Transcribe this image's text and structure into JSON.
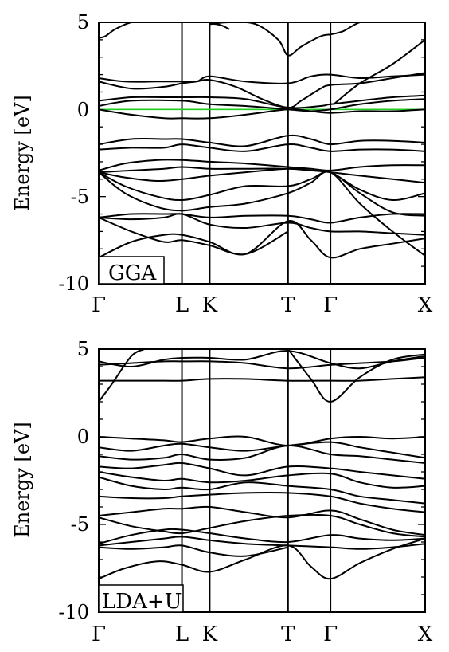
{
  "chart_data": [
    {
      "type": "line",
      "label": "GGA",
      "ylabel": "Energy [eV]",
      "ylim": [
        -10,
        5
      ],
      "yticks": [
        -10,
        -5,
        0,
        5
      ],
      "kpoints": [
        "Γ",
        "L",
        "K",
        "T",
        "Γ",
        "X"
      ],
      "kpoint_positions": [
        0,
        0.255,
        0.34,
        0.58,
        0.71,
        1.0
      ],
      "fermi_level": 0,
      "fermi_color": "#22cc22",
      "line_color": "#000000",
      "bands": [
        {
          "x": [
            0,
            0.02,
            0.05,
            0.1,
            0.14
          ],
          "y": [
            4.1,
            4.2,
            4.6,
            5.0,
            5.0
          ]
        },
        {
          "x": [
            0.34,
            0.4,
            0.48,
            0.55,
            0.58,
            0.62,
            0.68,
            0.71
          ],
          "y": [
            4.9,
            5.0,
            4.9,
            4.0,
            3.1,
            3.6,
            4.2,
            4.3
          ]
        },
        {
          "x": [
            0.71,
            0.75,
            0.8,
            0.85
          ],
          "y": [
            4.3,
            4.5,
            5.0,
            5.0
          ]
        },
        {
          "x": [
            0.34,
            0.36,
            0.38,
            0.4
          ],
          "y": [
            4.9,
            4.9,
            4.8,
            4.6
          ]
        },
        {
          "x": [
            0.72,
            0.8,
            0.9,
            1.0
          ],
          "y": [
            0.3,
            1.5,
            2.6,
            4.0
          ]
        },
        {
          "x": [
            0,
            0.08,
            0.18,
            0.255,
            0.3,
            0.34,
            0.45,
            0.58,
            0.65,
            0.71,
            0.8,
            0.9,
            1.0
          ],
          "y": [
            1.8,
            1.6,
            1.6,
            1.6,
            1.6,
            1.9,
            1.6,
            1.5,
            1.9,
            2.0,
            1.8,
            1.9,
            2.0
          ]
        },
        {
          "x": [
            0,
            0.1,
            0.2,
            0.255,
            0.3,
            0.34,
            0.42,
            0.5,
            0.58,
            0.62,
            0.68,
            0.71,
            0.8,
            0.9,
            1.0
          ],
          "y": [
            1.6,
            1.2,
            1.3,
            1.5,
            1.6,
            1.7,
            1.3,
            0.6,
            0.1,
            0.5,
            1.2,
            1.4,
            1.5,
            1.8,
            2.1
          ]
        },
        {
          "x": [
            0,
            0.1,
            0.2,
            0.255,
            0.34,
            0.45,
            0.58,
            0.68,
            0.71,
            0.8,
            0.9,
            1.0
          ],
          "y": [
            0.5,
            0.7,
            0.7,
            0.7,
            0.7,
            0.6,
            0.1,
            0.2,
            0.3,
            0.5,
            0.7,
            0.8
          ]
        },
        {
          "x": [
            0,
            0.1,
            0.255,
            0.34,
            0.45,
            0.58,
            0.65,
            0.71,
            0.8,
            0.9,
            1.0
          ],
          "y": [
            0.2,
            0.5,
            0.5,
            0.3,
            0.2,
            0.0,
            -0.1,
            0.0,
            0.3,
            0.5,
            0.6
          ]
        },
        {
          "x": [
            0,
            0.1,
            0.2,
            0.255,
            0.34,
            0.45,
            0.58,
            0.65,
            0.71,
            0.8,
            0.9,
            1.0
          ],
          "y": [
            0.0,
            -0.3,
            -0.5,
            -0.5,
            -0.5,
            -0.3,
            0.0,
            -0.1,
            -0.2,
            -0.1,
            -0.1,
            0.0
          ]
        },
        {
          "x": [
            0,
            0.1,
            0.2,
            0.255,
            0.34,
            0.45,
            0.58,
            0.65,
            0.71,
            0.8,
            0.9,
            1.0
          ],
          "y": [
            -2.0,
            -1.7,
            -1.7,
            -1.7,
            -1.9,
            -2.1,
            -1.5,
            -1.7,
            -2.0,
            -1.8,
            -1.8,
            -1.9
          ]
        },
        {
          "x": [
            0,
            0.1,
            0.2,
            0.255,
            0.34,
            0.45,
            0.58,
            0.65,
            0.71,
            0.8,
            0.9,
            1.0
          ],
          "y": [
            -2.3,
            -2.2,
            -2.2,
            -2.0,
            -2.2,
            -2.4,
            -2.0,
            -2.2,
            -2.4,
            -2.3,
            -2.3,
            -2.4
          ]
        },
        {
          "x": [
            0,
            0.08,
            0.18,
            0.255,
            0.34,
            0.45,
            0.58,
            0.65,
            0.71,
            0.8,
            0.9,
            1.0
          ],
          "y": [
            -3.5,
            -3.1,
            -2.9,
            -2.9,
            -3.0,
            -3.1,
            -3.3,
            -3.4,
            -3.5,
            -3.3,
            -3.2,
            -3.2
          ]
        },
        {
          "x": [
            0,
            0.1,
            0.2,
            0.255,
            0.34,
            0.45,
            0.58,
            0.65,
            0.71,
            0.8,
            0.9,
            1.0
          ],
          "y": [
            -3.6,
            -3.5,
            -3.4,
            -3.3,
            -3.4,
            -3.4,
            -3.4,
            -3.5,
            -3.6,
            -3.8,
            -4.0,
            -4.2
          ]
        },
        {
          "x": [
            0,
            0.08,
            0.18,
            0.255,
            0.34,
            0.45,
            0.58,
            0.65,
            0.71,
            0.8,
            0.9,
            1.0
          ],
          "y": [
            -3.6,
            -3.9,
            -4.1,
            -4.0,
            -3.8,
            -3.6,
            -3.4,
            -3.5,
            -3.6,
            -4.6,
            -5.2,
            -4.8
          ]
        },
        {
          "x": [
            0,
            0.08,
            0.18,
            0.255,
            0.34,
            0.45,
            0.58,
            0.65,
            0.71,
            0.8,
            0.9,
            1.0
          ],
          "y": [
            -3.6,
            -4.4,
            -5.0,
            -5.2,
            -4.9,
            -4.4,
            -4.4,
            -4.0,
            -3.6,
            -4.8,
            -5.9,
            -6.1
          ]
        },
        {
          "x": [
            0,
            0.08,
            0.18,
            0.255,
            0.34,
            0.45,
            0.58,
            0.65,
            0.71,
            0.8,
            0.9,
            1.0
          ],
          "y": [
            -3.6,
            -4.8,
            -5.6,
            -5.8,
            -5.6,
            -5.4,
            -4.8,
            -4.2,
            -3.6,
            -5.4,
            -7.0,
            -8.4
          ]
        },
        {
          "x": [
            0,
            0.1,
            0.2,
            0.255,
            0.34,
            0.45,
            0.58,
            0.65,
            0.71,
            0.8,
            0.9,
            1.0
          ],
          "y": [
            -6.2,
            -6.0,
            -6.0,
            -6.0,
            -6.2,
            -6.1,
            -6.1,
            -6.3,
            -6.5,
            -6.2,
            -6.0,
            -6.0
          ]
        },
        {
          "x": [
            0,
            0.1,
            0.2,
            0.255,
            0.34,
            0.45,
            0.58,
            0.65,
            0.71,
            0.8,
            0.9,
            1.0
          ],
          "y": [
            -6.2,
            -6.3,
            -6.2,
            -6.0,
            -6.6,
            -6.8,
            -6.5,
            -6.8,
            -7.0,
            -7.0,
            -7.1,
            -7.2
          ]
        },
        {
          "x": [
            0,
            0.1,
            0.2,
            0.255,
            0.34,
            0.45,
            0.58,
            0.65,
            0.71,
            0.8,
            0.9,
            1.0
          ],
          "y": [
            -8.5,
            -7.6,
            -7.2,
            -7.2,
            -7.6,
            -8.3,
            -6.4,
            -7.5,
            -8.5,
            -8.0,
            -7.7,
            -7.4
          ]
        },
        {
          "x": [
            0,
            0.1,
            0.2,
            0.255,
            0.34,
            0.45,
            0.58
          ],
          "y": [
            -6.2,
            -7.0,
            -7.6,
            -7.5,
            -7.8,
            -8.3,
            -7.0
          ]
        }
      ]
    },
    {
      "type": "line",
      "label": "LDA+U",
      "ylabel": "Energy [eV]",
      "ylim": [
        -10,
        5
      ],
      "yticks": [
        -10,
        -5,
        0,
        5
      ],
      "kpoints": [
        "Γ",
        "L",
        "K",
        "T",
        "Γ",
        "X"
      ],
      "kpoint_positions": [
        0,
        0.255,
        0.34,
        0.58,
        0.71,
        1.0
      ],
      "line_color": "#000000",
      "bands": [
        {
          "x": [
            0,
            0.04,
            0.1,
            0.14
          ],
          "y": [
            2.0,
            3.0,
            4.6,
            5.0
          ]
        },
        {
          "x": [
            0,
            0.1,
            0.2,
            0.255,
            0.34,
            0.45,
            0.58,
            0.71,
            0.8,
            0.9,
            1.0
          ],
          "y": [
            3.2,
            3.2,
            3.2,
            3.2,
            3.3,
            3.3,
            3.2,
            3.2,
            3.2,
            3.3,
            3.4
          ]
        },
        {
          "x": [
            0,
            0.1,
            0.2,
            0.255,
            0.34,
            0.45,
            0.58,
            0.71,
            0.8,
            0.9,
            1.0
          ],
          "y": [
            4.1,
            4.2,
            4.3,
            4.3,
            4.3,
            4.2,
            3.9,
            4.1,
            4.2,
            4.3,
            4.5
          ]
        },
        {
          "x": [
            0,
            0.1,
            0.2,
            0.255,
            0.34,
            0.45,
            0.58,
            0.71,
            0.8,
            0.9,
            1.0
          ],
          "y": [
            4.3,
            4.0,
            4.4,
            4.5,
            4.5,
            4.4,
            4.9,
            4.2,
            3.9,
            4.3,
            4.6
          ]
        },
        {
          "x": [
            0.58,
            0.65,
            0.71,
            0.8,
            0.9,
            1.0
          ],
          "y": [
            5.0,
            3.3,
            2.0,
            3.4,
            4.4,
            4.7
          ]
        },
        {
          "x": [
            0,
            0.1,
            0.2,
            0.255,
            0.34,
            0.45,
            0.58,
            0.71,
            0.8,
            0.9,
            1.0
          ],
          "y": [
            0.0,
            -0.1,
            -0.2,
            -0.3,
            -0.1,
            0.0,
            -0.5,
            -0.1,
            0.0,
            -0.1,
            0.0
          ]
        },
        {
          "x": [
            0,
            0.1,
            0.2,
            0.255,
            0.34,
            0.45,
            0.58,
            0.71,
            0.8,
            0.9,
            1.0
          ],
          "y": [
            -0.6,
            -0.8,
            -0.5,
            -0.4,
            -0.6,
            -0.8,
            -0.5,
            -0.3,
            -0.6,
            -0.9,
            -1.2
          ]
        },
        {
          "x": [
            0,
            0.1,
            0.2,
            0.255,
            0.34,
            0.45,
            0.58,
            0.71,
            0.8,
            0.9,
            1.0
          ],
          "y": [
            -1.1,
            -1.3,
            -1.2,
            -1.0,
            -1.3,
            -1.2,
            -0.5,
            -1.0,
            -1.1,
            -1.3,
            -1.5
          ]
        },
        {
          "x": [
            0,
            0.1,
            0.2,
            0.255,
            0.34,
            0.45,
            0.58,
            0.71,
            0.8,
            0.9,
            1.0
          ],
          "y": [
            -1.7,
            -1.8,
            -1.6,
            -1.5,
            -1.8,
            -2.2,
            -1.7,
            -1.8,
            -2.0,
            -2.2,
            -2.4
          ]
        },
        {
          "x": [
            0,
            0.1,
            0.2,
            0.255,
            0.34,
            0.45,
            0.58,
            0.71,
            0.8,
            0.9,
            1.0
          ],
          "y": [
            -2.0,
            -2.3,
            -2.5,
            -2.4,
            -2.6,
            -2.5,
            -2.2,
            -2.1,
            -2.6,
            -2.9,
            -2.8
          ]
        },
        {
          "x": [
            0,
            0.1,
            0.2,
            0.255,
            0.34,
            0.45,
            0.58,
            0.71,
            0.8,
            0.9,
            1.0
          ],
          "y": [
            -2.3,
            -2.8,
            -3.0,
            -2.9,
            -3.0,
            -2.6,
            -2.8,
            -3.0,
            -3.4,
            -3.6,
            -3.8
          ]
        },
        {
          "x": [
            0,
            0.1,
            0.2,
            0.255,
            0.34,
            0.45,
            0.58,
            0.71,
            0.8,
            0.9,
            1.0
          ],
          "y": [
            -3.4,
            -3.5,
            -3.5,
            -3.4,
            -3.3,
            -3.2,
            -3.2,
            -3.4,
            -3.8,
            -4.1,
            -4.3
          ]
        },
        {
          "x": [
            0,
            0.1,
            0.2,
            0.255,
            0.34,
            0.45,
            0.58,
            0.71,
            0.8,
            0.9,
            1.0
          ],
          "y": [
            -4.5,
            -4.3,
            -4.1,
            -4.1,
            -4.0,
            -4.3,
            -4.6,
            -4.2,
            -4.7,
            -5.3,
            -5.6
          ]
        },
        {
          "x": [
            0,
            0.1,
            0.2,
            0.255,
            0.34,
            0.45,
            0.58,
            0.71,
            0.8,
            0.9,
            1.0
          ],
          "y": [
            -4.6,
            -5.1,
            -5.4,
            -5.5,
            -5.2,
            -4.8,
            -4.5,
            -4.5,
            -5.0,
            -5.5,
            -5.7
          ]
        },
        {
          "x": [
            0,
            0.1,
            0.2,
            0.255,
            0.34,
            0.45,
            0.58,
            0.71,
            0.8,
            0.9,
            1.0
          ],
          "y": [
            -6.1,
            -5.6,
            -5.3,
            -5.3,
            -5.5,
            -5.8,
            -6.0,
            -5.6,
            -5.8,
            -5.9,
            -5.8
          ]
        },
        {
          "x": [
            0,
            0.1,
            0.2,
            0.255,
            0.34,
            0.45,
            0.58,
            0.71,
            0.8,
            0.9,
            1.0
          ],
          "y": [
            -6.2,
            -6.0,
            -5.8,
            -5.7,
            -5.9,
            -6.1,
            -6.2,
            -6.3,
            -6.4,
            -6.3,
            -6.1
          ]
        },
        {
          "x": [
            0,
            0.08,
            0.18,
            0.255,
            0.34,
            0.45,
            0.58,
            0.65,
            0.71,
            0.8,
            0.9,
            1.0
          ],
          "y": [
            -8.1,
            -7.5,
            -7.1,
            -7.3,
            -7.7,
            -7.0,
            -6.2,
            -7.4,
            -8.1,
            -7.2,
            -6.4,
            -5.8
          ]
        },
        {
          "x": [
            0,
            0.1,
            0.2,
            0.255,
            0.34,
            0.45,
            0.58
          ],
          "y": [
            -6.3,
            -6.4,
            -6.3,
            -6.2,
            -6.6,
            -6.8,
            -6.3
          ]
        }
      ]
    }
  ]
}
